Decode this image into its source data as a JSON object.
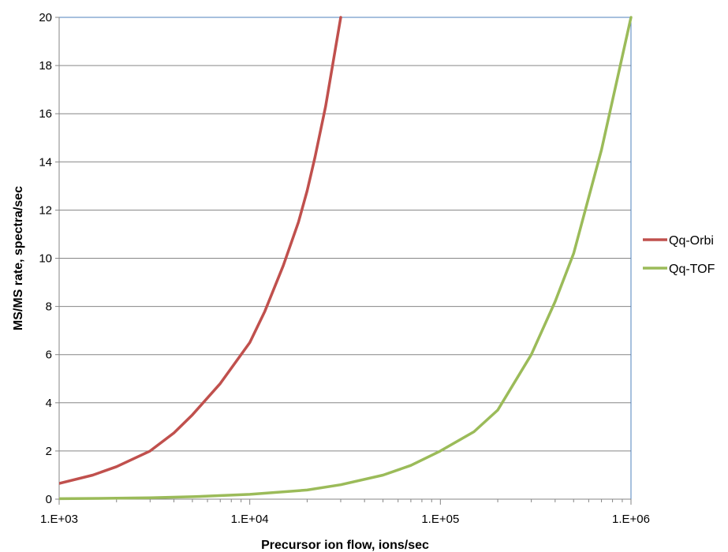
{
  "chart_data": {
    "type": "line",
    "xscale": "log",
    "xlim": [
      1000,
      1000000
    ],
    "ylim": [
      0,
      20
    ],
    "xlabel": "Precursor ion flow, ions/sec",
    "ylabel": "MS/MS rate, spectra/sec",
    "x_ticks": [
      1000,
      10000,
      100000,
      1000000
    ],
    "x_tick_labels": [
      "1.E+03",
      "1.E+04",
      "1.E+05",
      "1.E+06"
    ],
    "y_ticks": [
      0,
      2,
      4,
      6,
      8,
      10,
      12,
      14,
      16,
      18,
      20
    ],
    "y_tick_labels": [
      "0",
      "2",
      "4",
      "6",
      "8",
      "10",
      "12",
      "14",
      "16",
      "18",
      "20"
    ],
    "grid": "horizontal",
    "legend_position": "right",
    "series": [
      {
        "name": "Qq-Orbi",
        "color": "#C0504D",
        "x": [
          1000,
          1500,
          2000,
          3000,
          4000,
          5000,
          7000,
          10000,
          12000,
          15000,
          18000,
          20000,
          22000,
          25000,
          30000
        ],
        "y": [
          0.65,
          1.0,
          1.35,
          2.0,
          2.75,
          3.5,
          4.8,
          6.5,
          7.8,
          9.7,
          11.5,
          12.8,
          14.2,
          16.3,
          20
        ]
      },
      {
        "name": "Qq-TOF",
        "color": "#9BBB59",
        "x": [
          1000,
          2000,
          3000,
          5000,
          10000,
          20000,
          30000,
          50000,
          70000,
          100000,
          150000,
          200000,
          300000,
          400000,
          500000,
          700000,
          1000000
        ],
        "y": [
          0.02,
          0.04,
          0.06,
          0.1,
          0.2,
          0.38,
          0.6,
          1.0,
          1.4,
          2.0,
          2.8,
          3.7,
          6.0,
          8.2,
          10.2,
          14.5,
          20
        ]
      }
    ]
  }
}
